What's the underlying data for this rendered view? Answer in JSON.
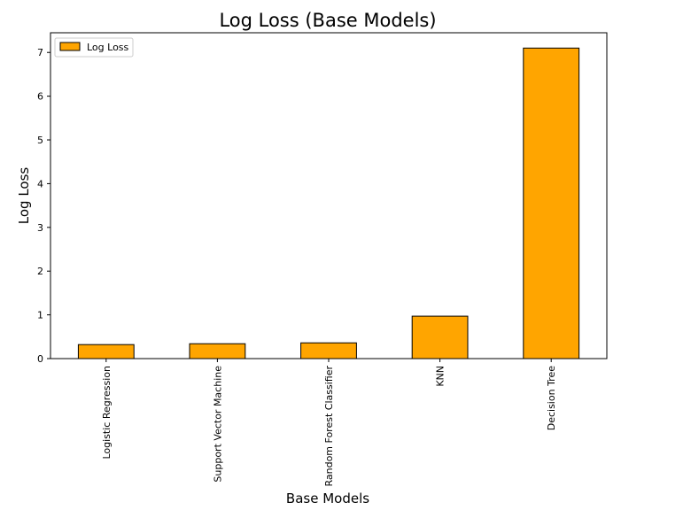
{
  "chart_data": {
    "type": "bar",
    "title": "Log Loss (Base Models)",
    "xlabel": "Base Models",
    "ylabel": "Log Loss",
    "categories": [
      "Logistic Regression",
      "Support Vector Machine",
      "Random Forest Classifier",
      "KNN",
      "Decision Tree"
    ],
    "series": [
      {
        "name": "Log Loss",
        "values": [
          0.32,
          0.34,
          0.36,
          0.97,
          7.1
        ]
      }
    ],
    "yticks": [
      "0",
      "1",
      "2",
      "3",
      "4",
      "5",
      "6",
      "7"
    ],
    "ylim": [
      0,
      7.45
    ],
    "legend_position": "top-left",
    "grid": false,
    "colors": {
      "bar_fill": "#FFA500",
      "bar_edge": "#000000",
      "axis": "#000000"
    }
  }
}
